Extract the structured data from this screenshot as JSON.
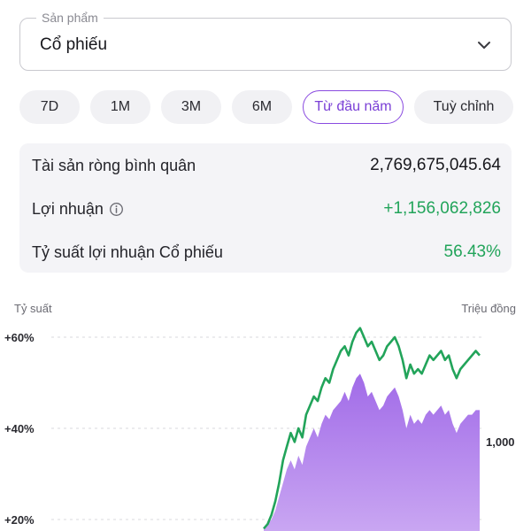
{
  "product_select": {
    "label": "Sản phẩm",
    "value": "Cổ phiếu",
    "icon": "chevron-down-icon"
  },
  "periods": {
    "items": [
      "7D",
      "1M",
      "3M",
      "6M",
      "Từ đầu năm",
      "Tuỳ chỉnh"
    ],
    "selected": "Từ đầu năm"
  },
  "summary": {
    "avg_net_assets": {
      "label": "Tài sản ròng bình quân",
      "value": "2,769,675,045.64"
    },
    "profit": {
      "label": "Lợi nhuận",
      "value": "+1,156,062,826",
      "icon": "info-icon"
    },
    "return_rate": {
      "label": "Tỷ suất lợi nhuận Cổ phiếu",
      "value": "56.43%"
    }
  },
  "colors": {
    "accent": "#8a4be0",
    "positive": "#22a45a",
    "area": "#a874ea"
  },
  "chart_data": {
    "type": "line",
    "left_axis_title": "Tỷ suất",
    "right_axis_title": "Triệu đồng",
    "left_ticks": [
      "+60%",
      "+40%",
      "+20%"
    ],
    "left_tick_values": [
      60,
      40,
      20
    ],
    "right_ticks": [
      "1,000"
    ],
    "grid": true,
    "series": [
      {
        "kind": "line",
        "color": "#22a45a",
        "y": [
          18,
          19,
          21,
          24,
          28,
          33,
          36,
          39,
          37,
          40,
          38,
          43,
          45,
          47,
          46,
          49,
          51,
          50,
          53,
          55,
          57,
          58,
          56,
          59,
          61,
          62,
          60,
          58,
          59,
          57,
          55,
          56,
          58,
          59,
          60,
          58,
          55,
          51,
          54,
          52,
          53,
          52,
          54,
          56,
          55,
          56,
          57,
          55,
          56,
          53,
          51,
          53,
          54,
          55,
          56,
          57,
          56
        ]
      },
      {
        "kind": "area",
        "color": "#a874ea",
        "y": [
          18,
          19,
          20,
          22,
          25,
          28,
          31,
          33,
          31,
          34,
          32,
          36,
          38,
          40,
          38,
          41,
          43,
          42,
          44,
          45,
          46,
          48,
          46,
          49,
          51,
          52,
          50,
          47,
          48,
          46,
          44,
          45,
          47,
          48,
          49,
          47,
          44,
          40,
          43,
          41,
          42,
          41,
          43,
          44,
          43,
          44,
          45,
          43,
          44,
          41,
          39,
          41,
          42,
          43,
          43,
          44,
          44
        ]
      }
    ]
  }
}
